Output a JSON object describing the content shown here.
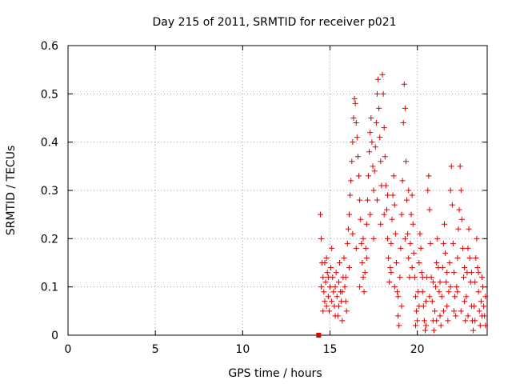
{
  "chart_data": {
    "type": "scatter",
    "title": "Day 215 of 2011, SRMTID for receiver p021",
    "xlabel": "GPS time / hours",
    "ylabel": "SRMTID / TECUs",
    "xlim": [
      0,
      24
    ],
    "ylim": [
      0,
      0.6
    ],
    "x_ticks": [
      0,
      5,
      10,
      15,
      20
    ],
    "x_tick_labels": [
      "0",
      "5",
      "10",
      "15",
      "20"
    ],
    "y_ticks": [
      0,
      0.1,
      0.2,
      0.3,
      0.4,
      0.5,
      0.6
    ],
    "y_tick_labels": [
      "0",
      "0.1",
      "0.2",
      "0.3",
      "0.4",
      "0.5",
      "0.6"
    ],
    "grid": true,
    "marker": "+",
    "series": [
      {
        "name": "p021",
        "color": "#e00000",
        "points": [
          [
            14.45,
            0.25
          ],
          [
            14.5,
            0.2
          ],
          [
            14.55,
            0.15
          ],
          [
            14.6,
            0.12
          ],
          [
            14.65,
            0.09
          ],
          [
            14.7,
            0.07
          ],
          [
            14.75,
            0.11
          ],
          [
            14.8,
            0.16
          ],
          [
            14.85,
            0.13
          ],
          [
            14.9,
            0.08
          ],
          [
            14.95,
            0.05
          ],
          [
            15.0,
            0.1
          ],
          [
            15.05,
            0.14
          ],
          [
            15.1,
            0.18
          ],
          [
            15.15,
            0.12
          ],
          [
            15.2,
            0.09
          ],
          [
            15.25,
            0.06
          ],
          [
            15.3,
            0.1
          ],
          [
            15.35,
            0.13
          ],
          [
            15.4,
            0.08
          ],
          [
            15.45,
            0.04
          ],
          [
            15.5,
            0.11
          ],
          [
            15.55,
            0.15
          ],
          [
            15.6,
            0.09
          ],
          [
            15.65,
            0.07
          ],
          [
            15.7,
            0.03
          ],
          [
            15.75,
            0.12
          ],
          [
            15.8,
            0.16
          ],
          [
            15.85,
            0.1
          ],
          [
            15.9,
            0.07
          ],
          [
            15.95,
            0.05
          ],
          [
            16.0,
            0.19
          ],
          [
            16.05,
            0.22
          ],
          [
            16.1,
            0.25
          ],
          [
            16.15,
            0.29
          ],
          [
            16.2,
            0.32
          ],
          [
            16.25,
            0.36
          ],
          [
            16.3,
            0.4
          ],
          [
            16.35,
            0.45
          ],
          [
            16.4,
            0.49
          ],
          [
            16.45,
            0.48
          ],
          [
            16.5,
            0.44
          ],
          [
            16.55,
            0.41
          ],
          [
            16.6,
            0.37
          ],
          [
            16.65,
            0.33
          ],
          [
            16.7,
            0.28
          ],
          [
            16.75,
            0.24
          ],
          [
            16.8,
            0.19
          ],
          [
            16.85,
            0.15
          ],
          [
            16.9,
            0.12
          ],
          [
            16.95,
            0.09
          ],
          [
            17.0,
            0.13
          ],
          [
            17.05,
            0.18
          ],
          [
            17.1,
            0.23
          ],
          [
            17.15,
            0.28
          ],
          [
            17.2,
            0.33
          ],
          [
            17.25,
            0.38
          ],
          [
            17.3,
            0.42
          ],
          [
            17.35,
            0.45
          ],
          [
            17.4,
            0.4
          ],
          [
            17.45,
            0.35
          ],
          [
            17.5,
            0.3
          ],
          [
            17.55,
            0.34
          ],
          [
            17.6,
            0.39
          ],
          [
            17.65,
            0.44
          ],
          [
            17.7,
            0.5
          ],
          [
            17.75,
            0.53
          ],
          [
            17.8,
            0.47
          ],
          [
            17.85,
            0.41
          ],
          [
            17.9,
            0.36
          ],
          [
            17.95,
            0.31
          ],
          [
            18.0,
            0.54
          ],
          [
            18.05,
            0.5
          ],
          [
            18.1,
            0.43
          ],
          [
            18.15,
            0.37
          ],
          [
            18.2,
            0.31
          ],
          [
            18.25,
            0.26
          ],
          [
            18.3,
            0.2
          ],
          [
            18.35,
            0.16
          ],
          [
            18.4,
            0.11
          ],
          [
            18.45,
            0.14
          ],
          [
            18.5,
            0.19
          ],
          [
            18.55,
            0.24
          ],
          [
            18.6,
            0.29
          ],
          [
            18.65,
            0.33
          ],
          [
            18.7,
            0.27
          ],
          [
            18.75,
            0.21
          ],
          [
            18.8,
            0.15
          ],
          [
            18.85,
            0.09
          ],
          [
            18.9,
            0.04
          ],
          [
            18.95,
            0.02
          ],
          [
            19.0,
            0.12
          ],
          [
            19.05,
            0.18
          ],
          [
            19.1,
            0.25
          ],
          [
            19.15,
            0.32
          ],
          [
            19.2,
            0.44
          ],
          [
            19.25,
            0.52
          ],
          [
            19.3,
            0.47
          ],
          [
            19.35,
            0.36
          ],
          [
            19.4,
            0.28
          ],
          [
            19.45,
            0.21
          ],
          [
            19.5,
            0.16
          ],
          [
            19.55,
            0.12
          ],
          [
            19.6,
            0.19
          ],
          [
            19.65,
            0.25
          ],
          [
            19.7,
            0.29
          ],
          [
            19.75,
            0.23
          ],
          [
            19.8,
            0.17
          ],
          [
            19.85,
            0.12
          ],
          [
            19.9,
            0.08
          ],
          [
            19.95,
            0.05
          ],
          [
            20.0,
            0.03
          ],
          [
            20.05,
            0.09
          ],
          [
            20.1,
            0.15
          ],
          [
            20.15,
            0.21
          ],
          [
            20.2,
            0.18
          ],
          [
            20.25,
            0.13
          ],
          [
            20.3,
            0.09
          ],
          [
            20.35,
            0.06
          ],
          [
            20.4,
            0.03
          ],
          [
            20.45,
            0.01
          ],
          [
            20.5,
            0.07
          ],
          [
            20.55,
            0.12
          ],
          [
            20.6,
            0.3
          ],
          [
            20.65,
            0.33
          ],
          [
            20.7,
            0.26
          ],
          [
            20.75,
            0.19
          ],
          [
            20.8,
            0.12
          ],
          [
            20.85,
            0.07
          ],
          [
            20.9,
            0.03
          ],
          [
            20.95,
            0.01
          ],
          [
            21.0,
            0.05
          ],
          [
            21.05,
            0.1
          ],
          [
            21.1,
            0.15
          ],
          [
            21.15,
            0.2
          ],
          [
            21.2,
            0.14
          ],
          [
            21.25,
            0.09
          ],
          [
            21.3,
            0.04
          ],
          [
            21.35,
            0.02
          ],
          [
            21.4,
            0.08
          ],
          [
            21.45,
            0.14
          ],
          [
            21.5,
            0.19
          ],
          [
            21.55,
            0.23
          ],
          [
            21.6,
            0.17
          ],
          [
            21.65,
            0.11
          ],
          [
            21.7,
            0.06
          ],
          [
            21.75,
            0.03
          ],
          [
            21.8,
            0.09
          ],
          [
            21.85,
            0.15
          ],
          [
            21.9,
            0.3
          ],
          [
            21.95,
            0.35
          ],
          [
            22.0,
            0.27
          ],
          [
            22.05,
            0.19
          ],
          [
            22.1,
            0.13
          ],
          [
            22.15,
            0.08
          ],
          [
            22.2,
            0.04
          ],
          [
            22.25,
            0.1
          ],
          [
            22.3,
            0.16
          ],
          [
            22.35,
            0.22
          ],
          [
            22.4,
            0.26
          ],
          [
            22.45,
            0.35
          ],
          [
            22.5,
            0.3
          ],
          [
            22.55,
            0.24
          ],
          [
            22.6,
            0.18
          ],
          [
            22.65,
            0.12
          ],
          [
            22.7,
            0.07
          ],
          [
            22.75,
            0.03
          ],
          [
            22.8,
            0.08
          ],
          [
            22.85,
            0.13
          ],
          [
            22.9,
            0.18
          ],
          [
            22.95,
            0.22
          ],
          [
            23.0,
            0.16
          ],
          [
            23.05,
            0.11
          ],
          [
            23.1,
            0.06
          ],
          [
            23.15,
            0.03
          ],
          [
            23.2,
            0.01
          ],
          [
            23.25,
            0.06
          ],
          [
            23.3,
            0.11
          ],
          [
            23.35,
            0.16
          ],
          [
            23.4,
            0.2
          ],
          [
            23.45,
            0.14
          ],
          [
            23.5,
            0.09
          ],
          [
            23.55,
            0.05
          ],
          [
            23.6,
            0.02
          ],
          [
            23.65,
            0.07
          ],
          [
            23.7,
            0.12
          ],
          [
            23.75,
            0.1
          ],
          [
            23.8,
            0.06
          ],
          [
            23.85,
            0.04
          ],
          [
            23.9,
            0.02
          ],
          [
            14.5,
            0.1
          ],
          [
            14.6,
            0.05
          ],
          [
            14.7,
            0.15
          ],
          [
            14.8,
            0.06
          ],
          [
            14.9,
            0.12
          ],
          [
            15.1,
            0.07
          ],
          [
            15.3,
            0.04
          ],
          [
            15.5,
            0.06
          ],
          [
            15.7,
            0.09
          ],
          [
            15.9,
            0.12
          ],
          [
            16.1,
            0.14
          ],
          [
            16.3,
            0.21
          ],
          [
            16.5,
            0.18
          ],
          [
            16.7,
            0.1
          ],
          [
            16.9,
            0.2
          ],
          [
            17.1,
            0.16
          ],
          [
            17.3,
            0.25
          ],
          [
            17.5,
            0.2
          ],
          [
            17.7,
            0.28
          ],
          [
            17.9,
            0.23
          ],
          [
            18.1,
            0.25
          ],
          [
            18.3,
            0.29
          ],
          [
            18.5,
            0.13
          ],
          [
            18.7,
            0.1
          ],
          [
            18.9,
            0.08
          ],
          [
            19.1,
            0.06
          ],
          [
            19.3,
            0.2
          ],
          [
            19.5,
            0.3
          ],
          [
            19.7,
            0.14
          ],
          [
            19.9,
            0.02
          ],
          [
            20.1,
            0.06
          ],
          [
            20.3,
            0.12
          ],
          [
            20.5,
            0.02
          ],
          [
            20.7,
            0.08
          ],
          [
            20.9,
            0.11
          ],
          [
            21.1,
            0.03
          ],
          [
            21.3,
            0.11
          ],
          [
            21.5,
            0.05
          ],
          [
            21.7,
            0.13
          ],
          [
            21.9,
            0.1
          ],
          [
            22.1,
            0.05
          ],
          [
            22.3,
            0.09
          ],
          [
            22.5,
            0.05
          ],
          [
            22.7,
            0.14
          ],
          [
            22.9,
            0.04
          ],
          [
            23.1,
            0.13
          ],
          [
            23.3,
            0.03
          ],
          [
            23.5,
            0.13
          ],
          [
            23.7,
            0.04
          ],
          [
            23.9,
            0.08
          ]
        ]
      },
      {
        "name": "p021-start",
        "color": "#e00000",
        "marker": "square",
        "points": [
          [
            14.35,
            0.0
          ]
        ]
      }
    ]
  }
}
